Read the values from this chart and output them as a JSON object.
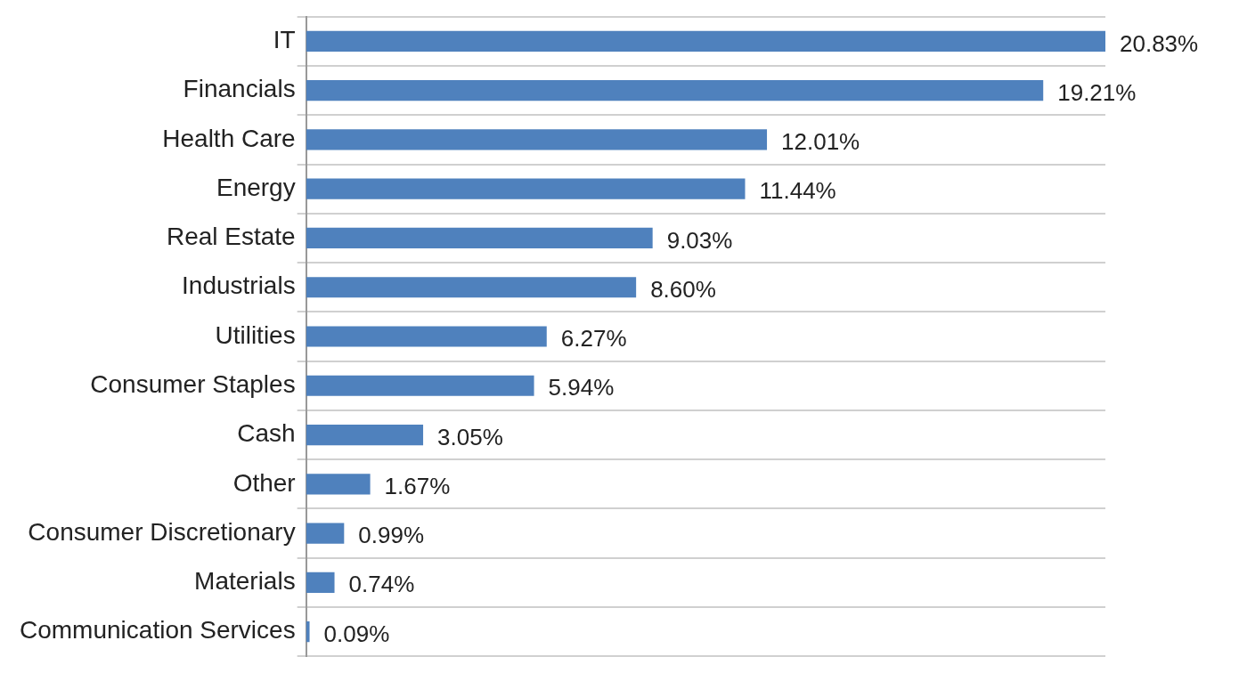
{
  "chart_data": {
    "type": "bar",
    "orientation": "horizontal",
    "categories": [
      "IT",
      "Financials",
      "Health Care",
      "Energy",
      "Real Estate",
      "Industrials",
      "Utilities",
      "Consumer Staples",
      "Cash",
      "Other",
      "Consumer Discretionary",
      "Materials",
      "Communication Services"
    ],
    "values": [
      20.83,
      19.21,
      12.01,
      11.44,
      9.03,
      8.6,
      6.27,
      5.94,
      3.05,
      1.67,
      0.99,
      0.74,
      0.09
    ],
    "value_labels": [
      "20.83%",
      "19.21%",
      "12.01%",
      "11.44%",
      "9.03%",
      "8.60%",
      "6.27%",
      "5.94%",
      "3.05%",
      "1.67%",
      "0.99%",
      "0.74%",
      "0.09%"
    ],
    "color": "#4f81bd",
    "grid": "y",
    "legend": false,
    "tick_labels": "y"
  }
}
